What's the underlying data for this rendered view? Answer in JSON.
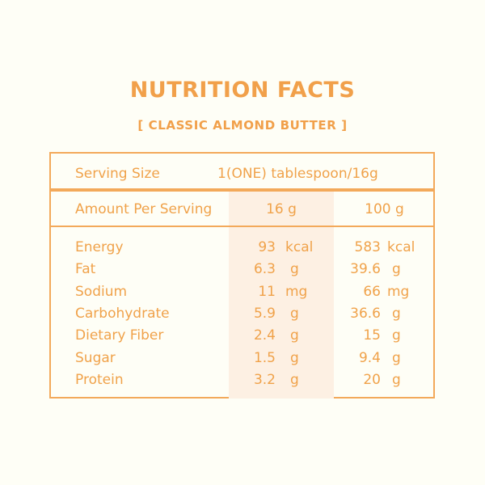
{
  "title": "NUTRITION FACTS",
  "subtitle": "[ CLASSIC ALMOND BUTTER ]",
  "serving": {
    "label": "Serving Size",
    "value": "1(ONE) tablespoon/16g"
  },
  "amount": {
    "label": "Amount Per Serving",
    "col1": "16 g",
    "col2": "100 g"
  },
  "rows": [
    {
      "name": "Energy",
      "v1": "93",
      "u1": "kcal",
      "v2": "583",
      "u2": "kcal"
    },
    {
      "name": "Fat",
      "v1": "6.3",
      "u1": "g",
      "v2": "39.6",
      "u2": "g"
    },
    {
      "name": "Sodium",
      "v1": "11",
      "u1": "mg",
      "v2": "66",
      "u2": "mg"
    },
    {
      "name": "Carbohydrate",
      "v1": "5.9",
      "u1": "g",
      "v2": "36.6",
      "u2": "g"
    },
    {
      "name": "Dietary Fiber",
      "v1": "2.4",
      "u1": "g",
      "v2": "15",
      "u2": "g"
    },
    {
      "name": "Sugar",
      "v1": "1.5",
      "u1": "g",
      "v2": "9.4",
      "u2": "g"
    },
    {
      "name": "Protein",
      "v1": "3.2",
      "u1": "g",
      "v2": "20",
      "u2": "g"
    }
  ]
}
